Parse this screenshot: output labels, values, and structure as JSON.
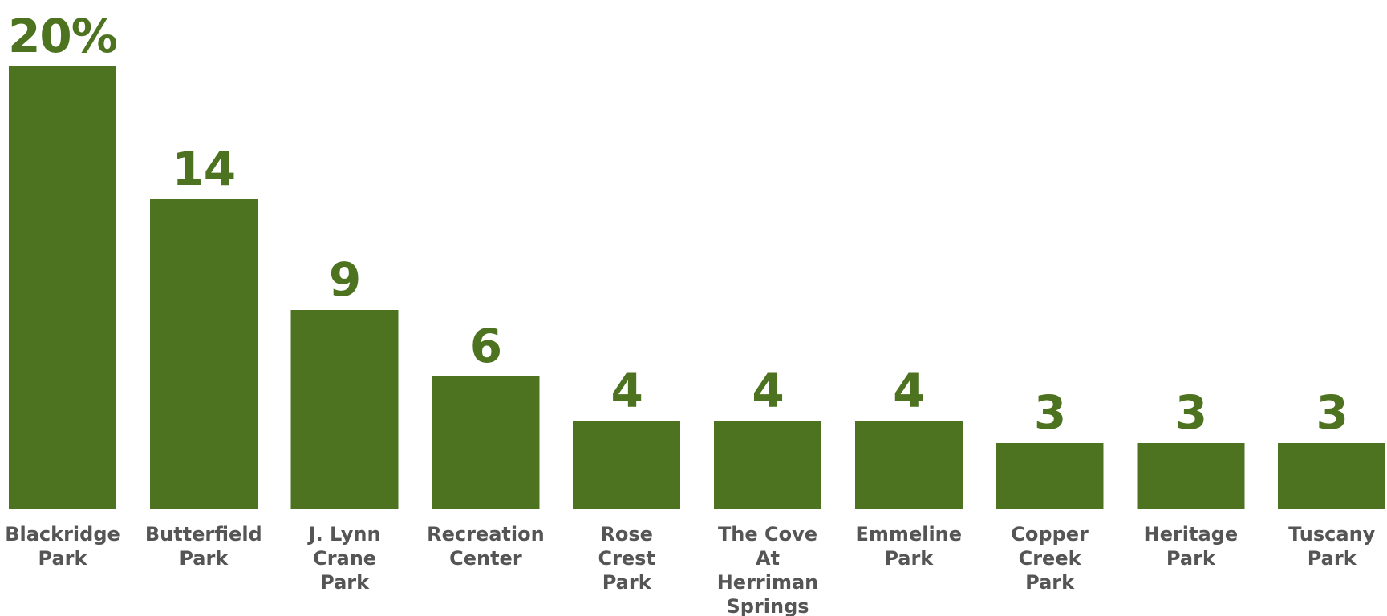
{
  "chart_data": {
    "type": "bar",
    "categories": [
      [
        "Blackridge",
        "Park"
      ],
      [
        "Butterfield",
        "Park"
      ],
      [
        "J. Lynn",
        "Crane",
        "Park"
      ],
      [
        "Recreation",
        "Center"
      ],
      [
        "Rose",
        "Crest",
        "Park"
      ],
      [
        "The Cove",
        "At",
        "Herriman",
        "Springs"
      ],
      [
        "Emmeline",
        "Park"
      ],
      [
        "Copper",
        "Creek",
        "Park"
      ],
      [
        "Heritage",
        "Park"
      ],
      [
        "Tuscany",
        "Park"
      ]
    ],
    "values": [
      20,
      14,
      9,
      6,
      4,
      4,
      4,
      3,
      3,
      3
    ],
    "value_labels": [
      "20%",
      "14",
      "9",
      "6",
      "4",
      "4",
      "4",
      "3",
      "3",
      "3"
    ],
    "ylim": [
      0,
      20
    ],
    "grid": false,
    "bar_color": "#4e7320",
    "label_color": "#555555"
  }
}
